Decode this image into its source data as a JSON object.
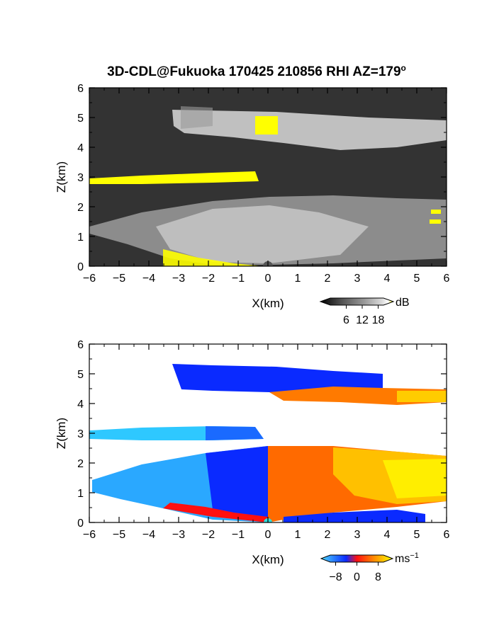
{
  "title": "3D-CDL@Fukuoka 170425 210856 RHI AZ=179",
  "title_superscript": "o",
  "chart_data": [
    {
      "type": "heatmap",
      "quantity": "reflectivity",
      "xlabel": "X(km)",
      "ylabel": "Z(km)",
      "xlim": [
        -6,
        6
      ],
      "ylim": [
        0,
        6
      ],
      "xticks": [
        -6,
        -5,
        -4,
        -3,
        -2,
        -1,
        0,
        1,
        2,
        3,
        4,
        5,
        6
      ],
      "yticks": [
        0,
        1,
        2,
        3,
        4,
        5,
        6
      ],
      "colorbar": {
        "unit": "dB",
        "ticks": [
          6,
          12,
          18
        ],
        "range": [
          0,
          20
        ],
        "colors": [
          "#000000",
          "#555555",
          "#999999",
          "#dddddd",
          "#ffffff",
          "#ffff00"
        ]
      },
      "layers": [
        {
          "name": "upper",
          "x": [
            -3.2,
            6.0
          ],
          "z": [
            4.2,
            5.3
          ],
          "level_db": 14
        },
        {
          "name": "middle",
          "x": [
            -6.0,
            0.0
          ],
          "z": [
            2.8,
            3.1
          ],
          "level_db": 19
        },
        {
          "name": "lower",
          "x": [
            -6.0,
            6.0
          ],
          "z": [
            0.0,
            2.5
          ],
          "level_db": 11
        }
      ]
    },
    {
      "type": "heatmap",
      "quantity": "radial_velocity",
      "xlabel": "X(km)",
      "ylabel": "Z(km)",
      "xlim": [
        -6,
        6
      ],
      "ylim": [
        0,
        6
      ],
      "xticks": [
        -6,
        -5,
        -4,
        -3,
        -2,
        -1,
        0,
        1,
        2,
        3,
        4,
        5,
        6
      ],
      "yticks": [
        0,
        1,
        2,
        3,
        4,
        5,
        6
      ],
      "colorbar": {
        "unit": "ms",
        "unit_exponent": "−1",
        "ticks": [
          -8,
          0,
          8
        ],
        "tick_labels": [
          "−8",
          "0",
          "8"
        ],
        "range": [
          -10,
          10
        ],
        "colors": [
          "#4dd9ff",
          "#0a2aff",
          "#ff1010",
          "#ff9000",
          "#ffff00"
        ]
      },
      "layers": [
        {
          "name": "upper",
          "x": [
            -3.2,
            6.0
          ],
          "z": [
            4.2,
            5.3
          ],
          "velocity_ms": [
            -7,
            6
          ]
        },
        {
          "name": "middle",
          "x": [
            -6.0,
            0.0
          ],
          "z": [
            2.8,
            3.1
          ],
          "velocity_ms": [
            -9,
            -6
          ]
        },
        {
          "name": "lower",
          "x": [
            -6.0,
            6.0
          ],
          "z": [
            0.0,
            2.5
          ],
          "velocity_ms": [
            -8,
            7
          ]
        }
      ]
    }
  ]
}
